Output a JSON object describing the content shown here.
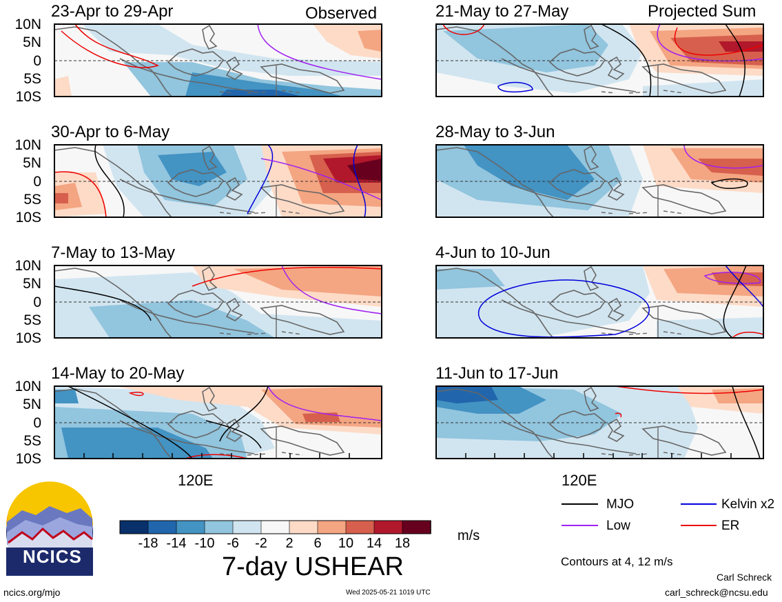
{
  "left_header": "Observed",
  "right_header": "Projected Sum",
  "lat_labels": [
    "10N",
    "5N",
    "0",
    "5S",
    "10S"
  ],
  "x_label": "120E",
  "panels": [
    {
      "title": "23-Apr to 29-Apr",
      "column": "observed"
    },
    {
      "title": "30-Apr to 6-May",
      "column": "observed"
    },
    {
      "title": "7-May to 13-May",
      "column": "observed"
    },
    {
      "title": "14-May to 20-May",
      "column": "observed"
    },
    {
      "title": "21-May to 27-May",
      "column": "projected"
    },
    {
      "title": "28-May to 3-Jun",
      "column": "projected"
    },
    {
      "title": "4-Jun to 10-Jun",
      "column": "projected"
    },
    {
      "title": "11-Jun to 17-Jun",
      "column": "projected"
    }
  ],
  "colorbar": {
    "ticks": [
      "-18",
      "-14",
      "-10",
      "-6",
      "-2",
      "2",
      "6",
      "10",
      "14",
      "18"
    ],
    "colors": [
      "#08306b",
      "#2166ac",
      "#4393c3",
      "#92c5de",
      "#d1e5f0",
      "#f7f7f7",
      "#fddbc7",
      "#f4a582",
      "#d6604d",
      "#b2182b",
      "#67001f"
    ],
    "units": "m/s",
    "title": "7-day USHEAR"
  },
  "legend": {
    "items": [
      {
        "label": "MJO",
        "color": "#000000"
      },
      {
        "label": "Kelvin x2",
        "color": "#0000dd"
      },
      {
        "label": "Low",
        "color": "#a020f0"
      },
      {
        "label": "ER",
        "color": "#ee0000"
      }
    ],
    "contour_note": "Contours at 4, 12 m/s"
  },
  "footer": {
    "logo_text": "NCICS",
    "url": "ncics.org/mjo",
    "timestamp": "Wed 2025-05-21 1019 UTC",
    "author": "Carl Schreck",
    "email": "carl_schreck@ncsu.edu"
  }
}
